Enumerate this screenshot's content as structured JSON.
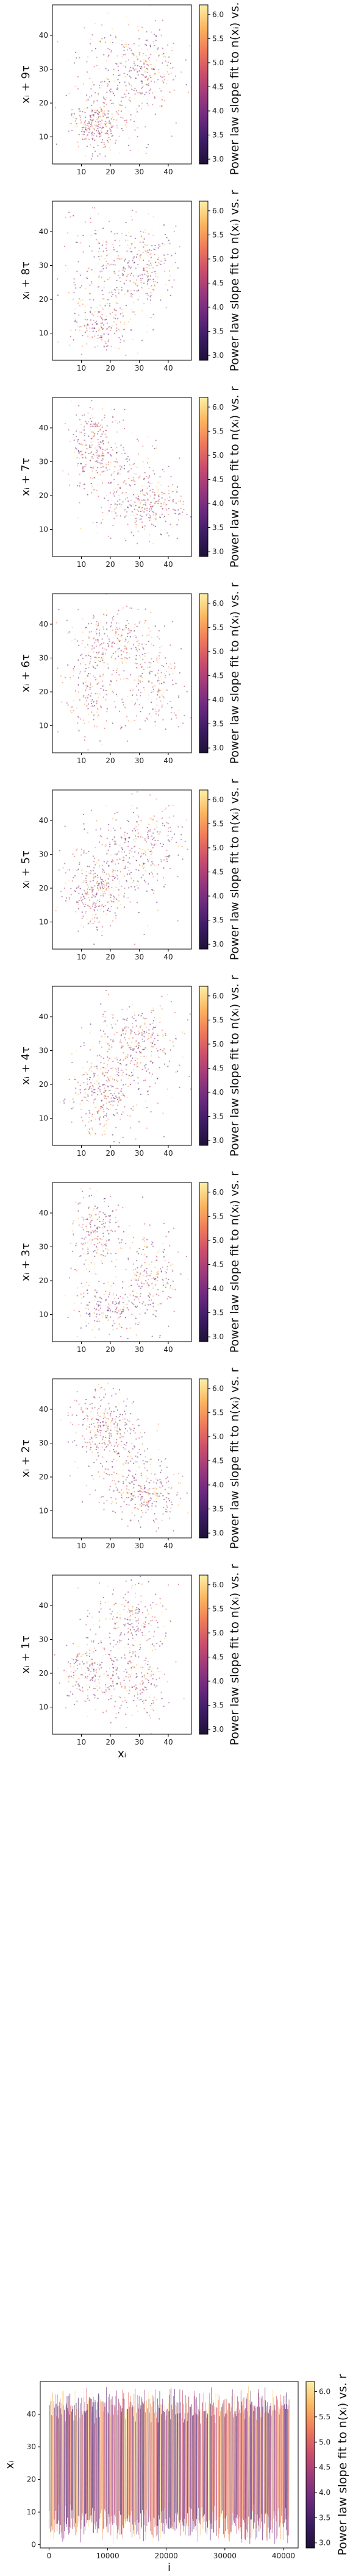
{
  "colorbar": {
    "label": "Power law slope fit to n(xᵢ) vs. r",
    "ticks": [
      "3.0",
      "3.5",
      "4.0",
      "4.5",
      "5.0",
      "5.5",
      "6.0"
    ],
    "range": [
      2.9,
      6.2
    ],
    "colormap": "magma",
    "colors": [
      "#1e1137",
      "#3b1c63",
      "#6a2a7e",
      "#9c3a7d",
      "#cc4f6b",
      "#ef7b5a",
      "#fbb65f",
      "#fcf0a8"
    ]
  },
  "chart_data": [
    {
      "type": "scatter",
      "panel_id": "lag-9",
      "ylabel": "xᵢ + 9τ",
      "xlabel": "",
      "xlim": [
        0,
        48
      ],
      "ylim": [
        2,
        49
      ],
      "xticks": [
        "10",
        "20",
        "30",
        "40"
      ],
      "yticks": [
        "10",
        "20",
        "30",
        "40"
      ],
      "clusters": [
        {
          "x": 15,
          "y": 14,
          "sx": 4,
          "sy": 4,
          "n": 260
        },
        {
          "x": 32,
          "y": 30,
          "sx": 6,
          "sy": 6,
          "n": 200
        },
        {
          "x": 22,
          "y": 26,
          "sx": 9,
          "sy": 10,
          "n": 220
        }
      ]
    },
    {
      "type": "scatter",
      "panel_id": "lag-8",
      "ylabel": "xᵢ + 8τ",
      "xlabel": "",
      "xlim": [
        0,
        48
      ],
      "ylim": [
        2,
        49
      ],
      "xticks": [
        "10",
        "20",
        "30",
        "40"
      ],
      "yticks": [
        "10",
        "20",
        "30",
        "40"
      ],
      "clusters": [
        {
          "x": 20,
          "y": 28,
          "sx": 9,
          "sy": 10,
          "n": 260
        },
        {
          "x": 33,
          "y": 30,
          "sx": 5,
          "sy": 6,
          "n": 180
        },
        {
          "x": 17,
          "y": 12,
          "sx": 5,
          "sy": 4,
          "n": 160
        }
      ]
    },
    {
      "type": "scatter",
      "panel_id": "lag-7",
      "ylabel": "xᵢ + 7τ",
      "xlabel": "",
      "xlim": [
        0,
        48
      ],
      "ylim": [
        2,
        49
      ],
      "xticks": [
        "10",
        "20",
        "30",
        "40"
      ],
      "yticks": [
        "10",
        "20",
        "30",
        "40"
      ],
      "clusters": [
        {
          "x": 15,
          "y": 35,
          "sx": 4,
          "sy": 6,
          "n": 220
        },
        {
          "x": 34,
          "y": 17,
          "sx": 6,
          "sy": 4,
          "n": 220
        },
        {
          "x": 24,
          "y": 24,
          "sx": 8,
          "sy": 8,
          "n": 200
        }
      ]
    },
    {
      "type": "scatter",
      "panel_id": "lag-6",
      "ylabel": "xᵢ + 6τ",
      "xlabel": "",
      "xlim": [
        0,
        48
      ],
      "ylim": [
        2,
        49
      ],
      "xticks": [
        "10",
        "20",
        "30",
        "40"
      ],
      "yticks": [
        "10",
        "20",
        "30",
        "40"
      ],
      "clusters": [
        {
          "x": 22,
          "y": 36,
          "sx": 7,
          "sy": 5,
          "n": 220
        },
        {
          "x": 34,
          "y": 22,
          "sx": 6,
          "sy": 7,
          "n": 200
        },
        {
          "x": 14,
          "y": 22,
          "sx": 5,
          "sy": 7,
          "n": 200
        }
      ]
    },
    {
      "type": "scatter",
      "panel_id": "lag-5",
      "ylabel": "xᵢ + 5τ",
      "xlabel": "",
      "xlim": [
        0,
        48
      ],
      "ylim": [
        2,
        49
      ],
      "xticks": [
        "10",
        "20",
        "30",
        "40"
      ],
      "yticks": [
        "10",
        "20",
        "30",
        "40"
      ],
      "clusters": [
        {
          "x": 15,
          "y": 18,
          "sx": 5,
          "sy": 5,
          "n": 240
        },
        {
          "x": 31,
          "y": 33,
          "sx": 7,
          "sy": 6,
          "n": 220
        },
        {
          "x": 22,
          "y": 26,
          "sx": 9,
          "sy": 9,
          "n": 180
        }
      ]
    },
    {
      "type": "scatter",
      "panel_id": "lag-4",
      "ylabel": "xᵢ + 4τ",
      "xlabel": "",
      "xlim": [
        0,
        48
      ],
      "ylim": [
        2,
        49
      ],
      "xticks": [
        "10",
        "20",
        "30",
        "40"
      ],
      "yticks": [
        "10",
        "20",
        "30",
        "40"
      ],
      "clusters": [
        {
          "x": 16,
          "y": 16,
          "sx": 5,
          "sy": 5,
          "n": 220
        },
        {
          "x": 30,
          "y": 34,
          "sx": 7,
          "sy": 5,
          "n": 220
        },
        {
          "x": 24,
          "y": 24,
          "sx": 8,
          "sy": 8,
          "n": 200
        }
      ]
    },
    {
      "type": "scatter",
      "panel_id": "lag-3",
      "ylabel": "xᵢ + 3τ",
      "xlabel": "",
      "xlim": [
        0,
        48
      ],
      "ylim": [
        2,
        49
      ],
      "xticks": [
        "10",
        "20",
        "30",
        "40"
      ],
      "yticks": [
        "10",
        "20",
        "30",
        "40"
      ],
      "clusters": [
        {
          "x": 15,
          "y": 34,
          "sx": 4,
          "sy": 6,
          "n": 220
        },
        {
          "x": 34,
          "y": 22,
          "sx": 5,
          "sy": 6,
          "n": 200
        },
        {
          "x": 20,
          "y": 12,
          "sx": 7,
          "sy": 4,
          "n": 200
        }
      ]
    },
    {
      "type": "scatter",
      "panel_id": "lag-2",
      "ylabel": "xᵢ + 2τ",
      "xlabel": "",
      "xlim": [
        0,
        48
      ],
      "ylim": [
        2,
        49
      ],
      "xticks": [
        "10",
        "20",
        "30",
        "40"
      ],
      "yticks": [
        "10",
        "20",
        "30",
        "40"
      ],
      "clusters": [
        {
          "x": 17,
          "y": 36,
          "sx": 5,
          "sy": 5,
          "n": 230
        },
        {
          "x": 33,
          "y": 14,
          "sx": 6,
          "sy": 4,
          "n": 220
        },
        {
          "x": 24,
          "y": 25,
          "sx": 7,
          "sy": 7,
          "n": 200
        }
      ]
    },
    {
      "type": "scatter",
      "panel_id": "lag-1",
      "ylabel": "xᵢ + 1τ",
      "xlabel": "xᵢ",
      "xlim": [
        0,
        48
      ],
      "ylim": [
        2,
        49
      ],
      "xticks": [
        "10",
        "20",
        "30",
        "40"
      ],
      "yticks": [
        "10",
        "20",
        "30",
        "40"
      ],
      "clusters": [
        {
          "x": 14,
          "y": 20,
          "sx": 5,
          "sy": 5,
          "n": 220
        },
        {
          "x": 26,
          "y": 36,
          "sx": 7,
          "sy": 5,
          "n": 220
        },
        {
          "x": 30,
          "y": 18,
          "sx": 6,
          "sy": 6,
          "n": 200
        }
      ]
    },
    {
      "type": "line",
      "panel_id": "time-series",
      "ylabel": "xᵢ",
      "xlabel": "i",
      "xlim": [
        -1500,
        42500
      ],
      "ylim": [
        -1,
        50
      ],
      "xticks": [
        "0",
        "10000",
        "20000",
        "30000",
        "40000"
      ],
      "xtick_values": [
        0,
        10000,
        20000,
        30000,
        40000
      ],
      "yticks": [
        "0",
        "10",
        "20",
        "30",
        "40"
      ],
      "n_points": 41000,
      "value_range": [
        3,
        46
      ]
    }
  ]
}
